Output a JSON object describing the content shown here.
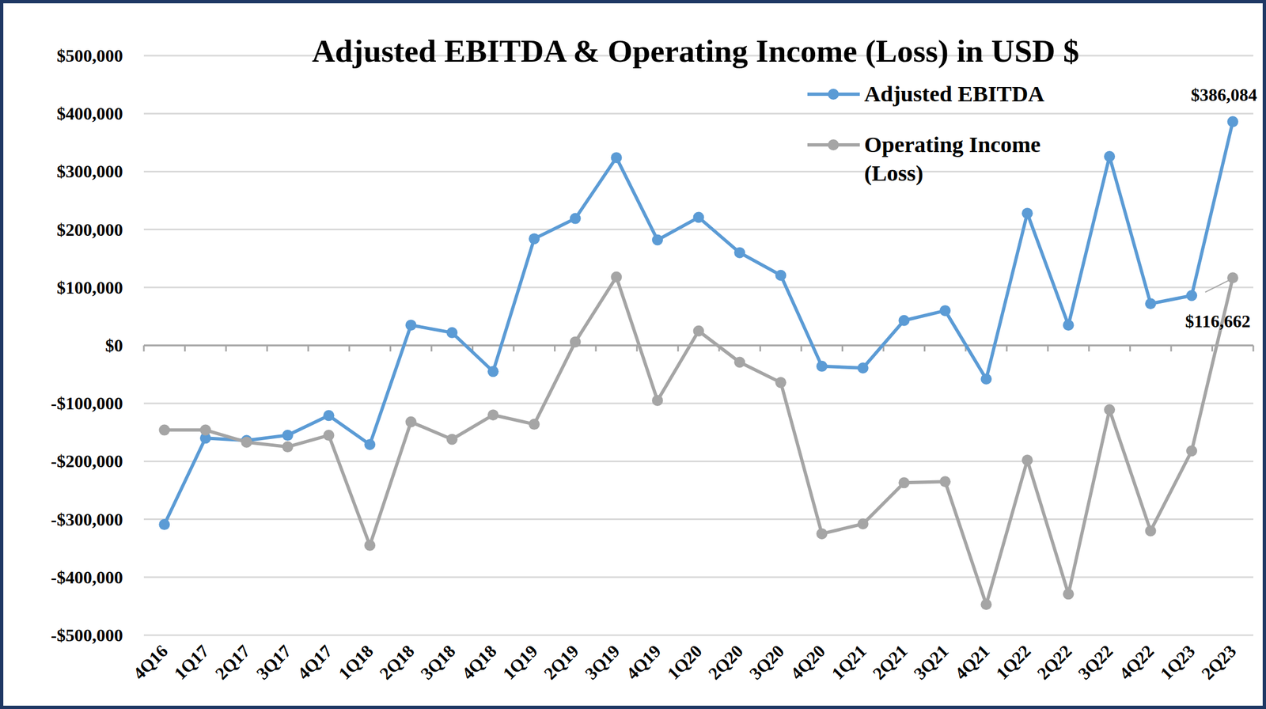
{
  "chart_data": {
    "type": "line",
    "title": "Adjusted EBITDA & Operating Income (Loss) in USD $",
    "categories": [
      "4Q16",
      "1Q17",
      "2Q17",
      "3Q17",
      "4Q17",
      "1Q18",
      "2Q18",
      "3Q18",
      "4Q18",
      "1Q19",
      "2Q19",
      "3Q19",
      "4Q19",
      "1Q20",
      "2Q20",
      "3Q20",
      "4Q20",
      "1Q21",
      "2Q21",
      "3Q21",
      "4Q21",
      "1Q22",
      "2Q22",
      "3Q22",
      "4Q22",
      "1Q23",
      "2Q23"
    ],
    "series": [
      {
        "name": "Adjusted EBITDA",
        "color": "#5b9bd5",
        "marker": "circle",
        "line_style": "solid",
        "values": [
          -309000,
          -160000,
          -164000,
          -155000,
          -121000,
          -171000,
          35000,
          22000,
          -45000,
          184000,
          219000,
          324000,
          182000,
          221000,
          160000,
          121000,
          -36000,
          -39000,
          43000,
          60000,
          -58000,
          228000,
          35000,
          326000,
          72000,
          86000,
          386084
        ],
        "value_labels": [
          null,
          null,
          null,
          null,
          null,
          null,
          null,
          null,
          null,
          null,
          null,
          null,
          null,
          null,
          null,
          null,
          null,
          null,
          null,
          null,
          null,
          null,
          null,
          null,
          null,
          null,
          "$386,084"
        ]
      },
      {
        "name": "Operating Income (Loss)",
        "color": "#a5a5a5",
        "marker": "circle",
        "line_style": "solid",
        "values": [
          -146000,
          -146000,
          -167000,
          -175000,
          -155000,
          -345000,
          -132000,
          -162000,
          -120000,
          -136000,
          6000,
          118000,
          -95000,
          25000,
          -29000,
          -64000,
          -325000,
          -308000,
          -237000,
          -235000,
          -447000,
          -198000,
          -429000,
          -111000,
          -320000,
          -182000,
          116662
        ],
        "value_labels": [
          null,
          null,
          null,
          null,
          null,
          null,
          null,
          null,
          null,
          null,
          null,
          null,
          null,
          null,
          null,
          null,
          null,
          null,
          null,
          null,
          null,
          null,
          null,
          null,
          null,
          null,
          "$116,662"
        ]
      }
    ],
    "ylim": [
      -500000,
      500000
    ],
    "yticks": [
      {
        "value": -500000,
        "label": "-$500,000"
      },
      {
        "value": -400000,
        "label": "-$400,000"
      },
      {
        "value": -300000,
        "label": "-$300,000"
      },
      {
        "value": -200000,
        "label": "-$200,000"
      },
      {
        "value": -100000,
        "label": "-$100,000"
      },
      {
        "value": 0,
        "label": "$0"
      },
      {
        "value": 100000,
        "label": "$100,000"
      },
      {
        "value": 200000,
        "label": "$200,000"
      },
      {
        "value": 300000,
        "label": "$300,000"
      },
      {
        "value": 400000,
        "label": "$400,000"
      },
      {
        "value": 500000,
        "label": "$500,000"
      }
    ],
    "grid": true,
    "legend": "top-right"
  }
}
